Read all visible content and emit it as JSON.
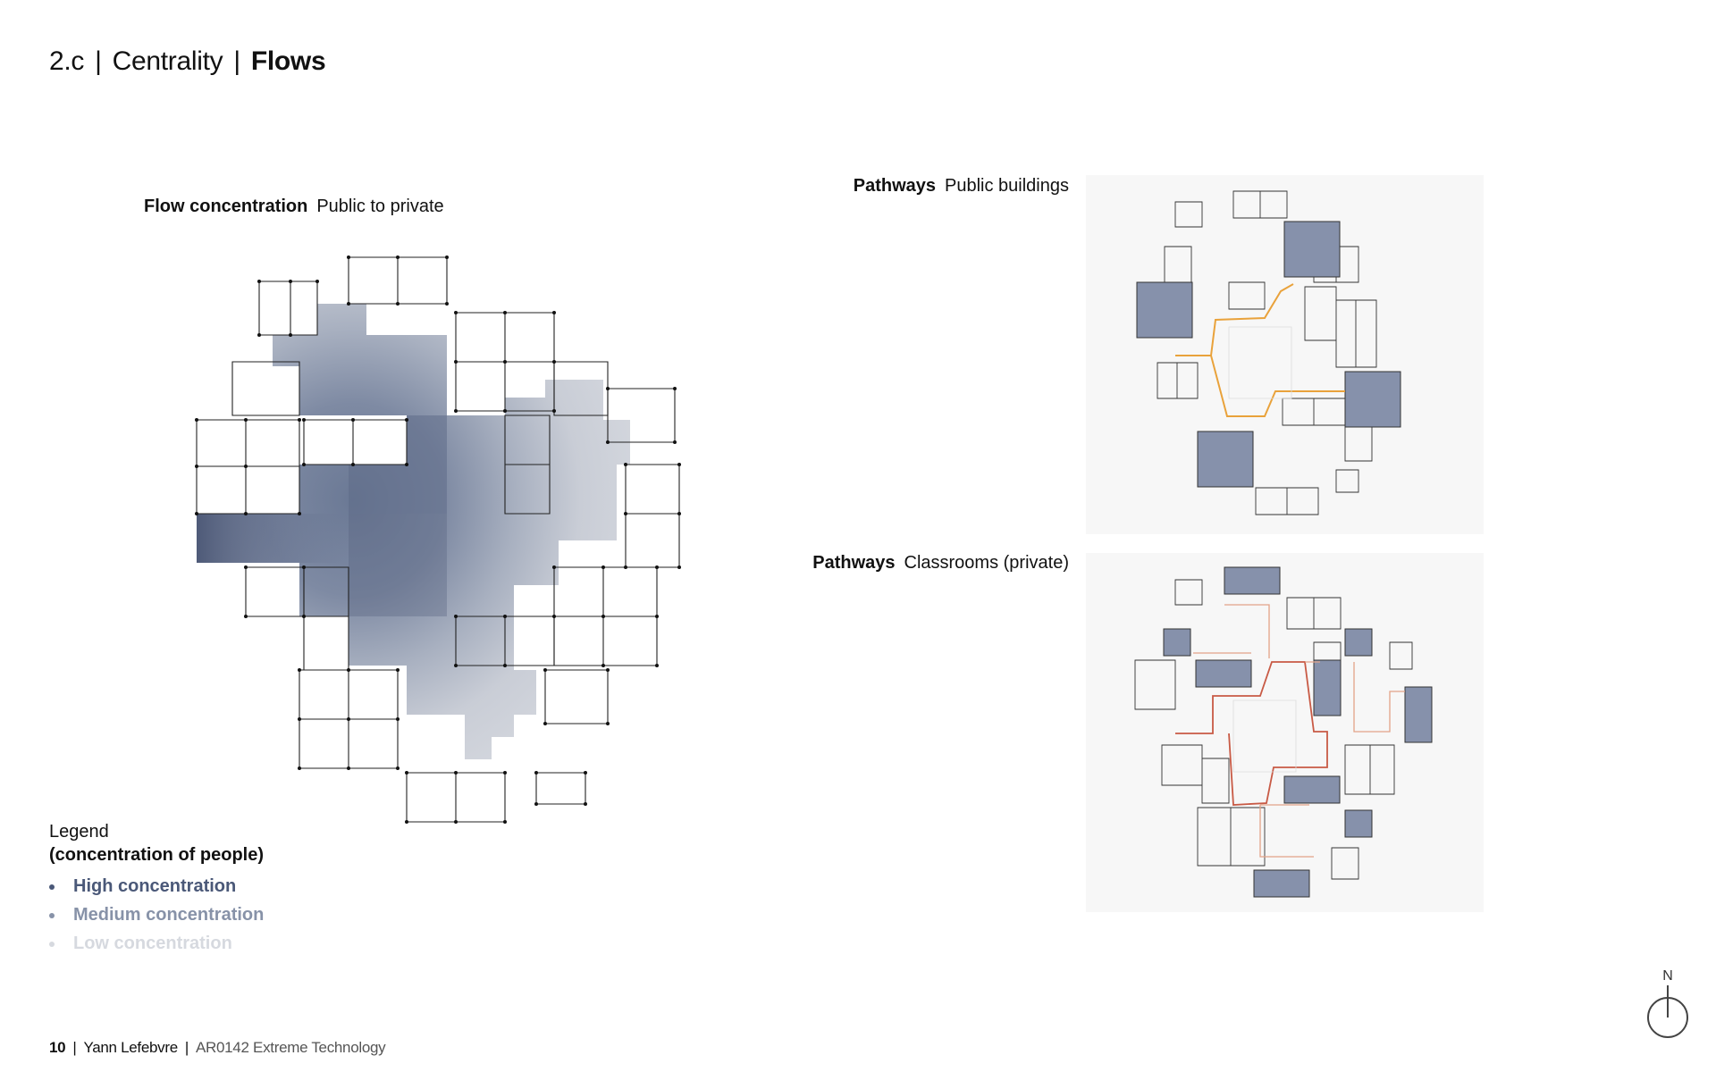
{
  "header": {
    "section": "2.c",
    "topic": "Centrality",
    "subtopic": "Flows"
  },
  "flow_map": {
    "caption_bold": "Flow concentration",
    "caption_rest": "Public to private"
  },
  "pathways_public": {
    "caption_bold": "Pathways",
    "caption_rest": "Public buildings"
  },
  "pathways_private": {
    "caption_bold": "Pathways",
    "caption_rest": "Classrooms (private)"
  },
  "legend": {
    "title": "Legend",
    "subtitle": "(concentration of people)",
    "items": [
      {
        "label": "High concentration",
        "color": "#4a5878"
      },
      {
        "label": "Medium concentration",
        "color": "#8792a8"
      },
      {
        "label": "Low concentration",
        "color": "#d6d9df"
      }
    ]
  },
  "footer": {
    "page": "10",
    "author": "Yann Lefebvre",
    "course": "AR0142 Extreme Technology"
  },
  "north_label": "N",
  "colors": {
    "building_fill": "#8691ab",
    "public_path": "#e9a23b",
    "private_path": "#c85a45",
    "private_path_light": "#e3a388",
    "panel_bg": "#f7f7f7"
  }
}
